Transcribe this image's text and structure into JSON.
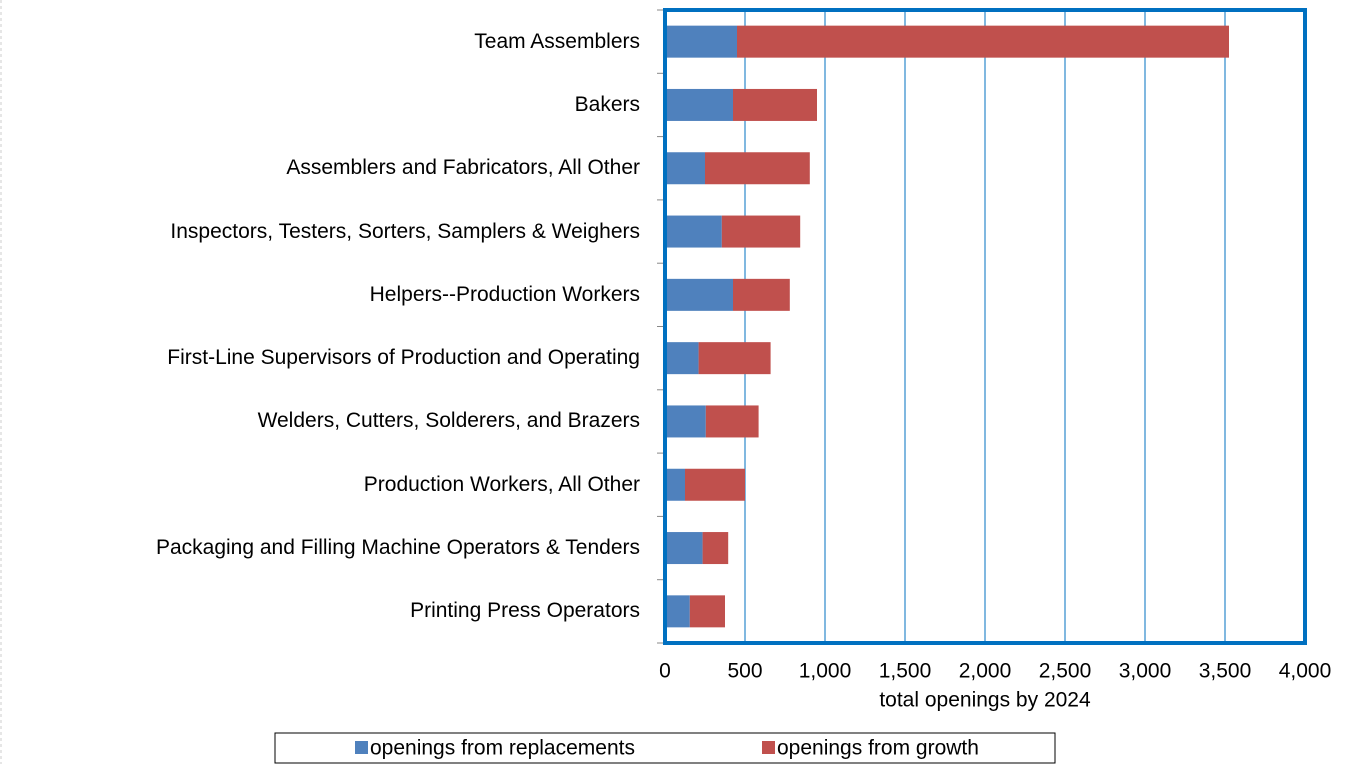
{
  "chart_data": {
    "type": "stacked-barh",
    "xlabel": "total openings by 2024",
    "categories": [
      "Team Assemblers",
      "Bakers",
      "Assemblers and Fabricators, All Other",
      "Inspectors, Testers, Sorters, Samplers & Weighers",
      "Helpers--Production Workers",
      "First-Line Supervisors of Production and Operating",
      "Welders, Cutters, Solderers, and Brazers",
      "Production Workers, All Other",
      "Packaging and Filling Machine Operators & Tenders",
      "Printing Press Operators"
    ],
    "series": [
      {
        "name": "openings from replacements",
        "color": "#4f81bd",
        "values": [
          450,
          425,
          250,
          355,
          425,
          210,
          255,
          125,
          235,
          155
        ]
      },
      {
        "name": "openings from growth",
        "color": "#c0504d",
        "values": [
          3075,
          525,
          655,
          490,
          355,
          450,
          330,
          375,
          160,
          220
        ]
      }
    ],
    "xlim": [
      0,
      4000
    ],
    "xticks": [
      0,
      500,
      {
        "value": 1000,
        "label": "1,000"
      },
      {
        "value": 1500,
        "label": "1,500"
      },
      {
        "value": 2000,
        "label": "2,000"
      },
      {
        "value": 2500,
        "label": "2,500"
      },
      {
        "value": 3000,
        "label": "3,000"
      },
      {
        "value": 3500,
        "label": "3,500"
      },
      {
        "value": 4000,
        "label": "4,000"
      }
    ],
    "grid": true,
    "legend": "bottom"
  }
}
